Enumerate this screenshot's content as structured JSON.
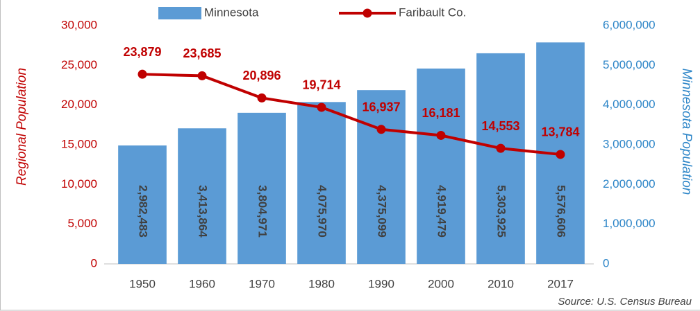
{
  "chart_data": {
    "type": "bar",
    "categories": [
      "1950",
      "1960",
      "1970",
      "1980",
      "1990",
      "2000",
      "2010",
      "2017"
    ],
    "series": [
      {
        "name": "Minnesota",
        "type": "bar",
        "axis": "y2",
        "color": "#5b9bd5",
        "values": [
          2982483,
          3413864,
          3804971,
          4075970,
          4375099,
          4919479,
          5303925,
          5576606
        ],
        "value_labels": [
          "2,982,483",
          "3,413,864",
          "3,804,971",
          "4,075,970",
          "4,375,099",
          "4,919,479",
          "5,303,925",
          "5,576,606"
        ]
      },
      {
        "name": "Faribault Co.",
        "type": "line",
        "axis": "y",
        "color": "#c00000",
        "values": [
          23879,
          23685,
          20896,
          19714,
          16937,
          16181,
          14553,
          13784
        ],
        "value_labels": [
          "23,879",
          "23,685",
          "20,896",
          "19,714",
          "16,937",
          "16,181",
          "14,553",
          "13,784"
        ]
      }
    ],
    "ylabel": "Regional Population",
    "y2label": "Minnesota Population",
    "ylim": [
      0,
      30000
    ],
    "yticks": [
      0,
      {
        "value": 5000,
        "label": "5,000"
      },
      {
        "value": 10000,
        "label": "10,000"
      },
      {
        "value": 15000,
        "label": "15,000"
      },
      {
        "value": 20000,
        "label": "20,000"
      },
      {
        "value": 25000,
        "label": "25,000"
      },
      {
        "value": 30000,
        "label": "30,000"
      }
    ],
    "y2lim": [
      0,
      6000000
    ],
    "y2ticks": [
      0,
      {
        "value": 1000000,
        "label": "1,000,000"
      },
      {
        "value": 2000000,
        "label": "2,000,000"
      },
      {
        "value": 3000000,
        "label": "3,000,000"
      },
      {
        "value": 4000000,
        "label": "4,000,000"
      },
      {
        "value": 5000000,
        "label": "5,000,000"
      },
      {
        "value": 6000000,
        "label": "6,000,000"
      }
    ],
    "annotation": "Source: U.S. Census Bureau",
    "legend": "top"
  }
}
